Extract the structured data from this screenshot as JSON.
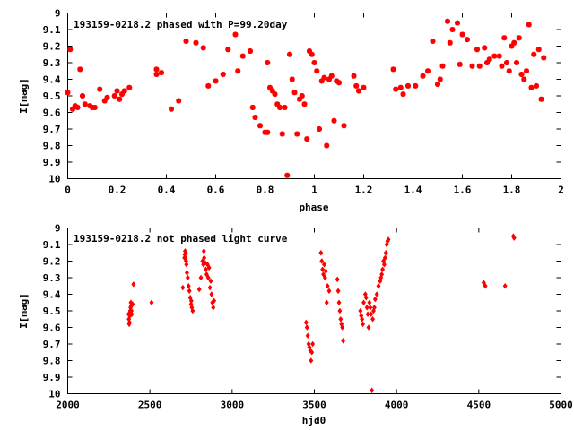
{
  "colors": {
    "points": "#ff0000",
    "axes": "#000000",
    "background": "#ffffff"
  },
  "chart_data": [
    {
      "type": "scatter",
      "title": "193159-0218.2 phased with P=99.20day",
      "xlabel": "phase",
      "ylabel": "I[mag]",
      "xlim": [
        0,
        2
      ],
      "ylim": [
        10,
        9
      ],
      "y_inverted": true,
      "grid": false,
      "marker": "star",
      "xticks": [
        "0",
        "0.2",
        "0.4",
        "0.6",
        "0.8",
        "1",
        "1.2",
        "1.4",
        "1.6",
        "1.8",
        "2"
      ],
      "yticks": [
        "9",
        "9.1",
        "9.2",
        "9.3",
        "9.4",
        "9.5",
        "9.6",
        "9.7",
        "9.8",
        "9.9",
        "10"
      ],
      "x": [
        0.0,
        0.01,
        0.02,
        0.03,
        0.04,
        0.05,
        0.06,
        0.07,
        0.09,
        0.1,
        0.11,
        0.13,
        0.15,
        0.16,
        0.19,
        0.2,
        0.21,
        0.22,
        0.23,
        0.25,
        0.36,
        0.36,
        0.38,
        0.42,
        0.45,
        0.48,
        0.52,
        0.55,
        0.57,
        0.6,
        0.63,
        0.65,
        0.68,
        0.69,
        0.71,
        0.74,
        0.75,
        0.76,
        0.78,
        0.8,
        0.81,
        0.81,
        0.82,
        0.83,
        0.84,
        0.85,
        0.86,
        0.87,
        0.88,
        0.89,
        0.9,
        0.91,
        0.92,
        0.93,
        0.94,
        0.95,
        0.96,
        0.97,
        0.98,
        0.99,
        1.0,
        1.01,
        1.02,
        1.03,
        1.04,
        1.05,
        1.06,
        1.07,
        1.08,
        1.09,
        1.1,
        1.12,
        1.16,
        1.17,
        1.18,
        1.2,
        1.32,
        1.33,
        1.35,
        1.36,
        1.38,
        1.41,
        1.44,
        1.46,
        1.48,
        1.5,
        1.51,
        1.52,
        1.54,
        1.55,
        1.56,
        1.58,
        1.59,
        1.6,
        1.62,
        1.64,
        1.66,
        1.67,
        1.69,
        1.7,
        1.71,
        1.73,
        1.75,
        1.76,
        1.77,
        1.78,
        1.79,
        1.8,
        1.81,
        1.82,
        1.83,
        1.84,
        1.85,
        1.86,
        1.87,
        1.88,
        1.89,
        1.9,
        1.91,
        1.92,
        1.93
      ],
      "y": [
        9.48,
        9.22,
        9.58,
        9.56,
        9.57,
        9.34,
        9.5,
        9.55,
        9.56,
        9.57,
        9.57,
        9.46,
        9.53,
        9.51,
        9.5,
        9.47,
        9.52,
        9.49,
        9.47,
        9.45,
        9.34,
        9.37,
        9.36,
        9.58,
        9.53,
        9.17,
        9.18,
        9.21,
        9.44,
        9.41,
        9.37,
        9.22,
        9.13,
        9.35,
        9.26,
        9.23,
        9.57,
        9.63,
        9.68,
        9.72,
        9.72,
        9.3,
        9.45,
        9.47,
        9.49,
        9.55,
        9.57,
        9.73,
        9.57,
        9.98,
        9.25,
        9.4,
        9.48,
        9.73,
        9.52,
        9.5,
        9.55,
        9.76,
        9.23,
        9.25,
        9.3,
        9.35,
        9.7,
        9.41,
        9.39,
        9.8,
        9.4,
        9.38,
        9.65,
        9.41,
        9.42,
        9.68,
        9.38,
        9.44,
        9.47,
        9.45,
        9.34,
        9.46,
        9.45,
        9.49,
        9.44,
        9.44,
        9.38,
        9.35,
        9.17,
        9.43,
        9.4,
        9.32,
        9.05,
        9.18,
        9.1,
        9.06,
        9.31,
        9.13,
        9.16,
        9.32,
        9.22,
        9.32,
        9.21,
        9.3,
        9.28,
        9.26,
        9.26,
        9.32,
        9.15,
        9.3,
        9.35,
        9.2,
        9.18,
        9.3,
        9.15,
        9.37,
        9.4,
        9.35,
        9.07,
        9.45,
        9.25,
        9.44,
        9.22,
        9.52,
        9.27
      ]
    },
    {
      "type": "scatter",
      "title": "193159-0218.2 not phased light curve",
      "xlabel": "hjd0",
      "ylabel": "I[mag]",
      "xlim": [
        2000,
        5000
      ],
      "ylim": [
        10,
        9
      ],
      "y_inverted": true,
      "grid": false,
      "marker": "diamond",
      "xticks": [
        "2000",
        "2500",
        "3000",
        "3500",
        "4000",
        "4500",
        "5000"
      ],
      "yticks": [
        "9",
        "9.1",
        "9.2",
        "9.3",
        "9.4",
        "9.5",
        "9.6",
        "9.7",
        "9.8",
        "9.9",
        "10"
      ],
      "x": [
        2370,
        2372,
        2374,
        2376,
        2378,
        2380,
        2382,
        2384,
        2386,
        2388,
        2390,
        2395,
        2400,
        2510,
        2700,
        2710,
        2712,
        2714,
        2716,
        2718,
        2720,
        2722,
        2725,
        2730,
        2735,
        2740,
        2745,
        2750,
        2752,
        2755,
        2760,
        2800,
        2810,
        2820,
        2825,
        2828,
        2830,
        2835,
        2840,
        2845,
        2850,
        2855,
        2860,
        2865,
        2870,
        2875,
        2880,
        2885,
        2890,
        3450,
        3455,
        3460,
        3465,
        3470,
        3475,
        3480,
        3485,
        3490,
        3540,
        3545,
        3550,
        3555,
        3560,
        3565,
        3570,
        3575,
        3580,
        3590,
        3640,
        3645,
        3650,
        3655,
        3660,
        3665,
        3670,
        3675,
        3780,
        3785,
        3790,
        3795,
        3800,
        3810,
        3815,
        3820,
        3825,
        3830,
        3835,
        3840,
        3845,
        3850,
        3855,
        3860,
        3865,
        3870,
        3880,
        3890,
        3900,
        3905,
        3910,
        3915,
        3920,
        3925,
        3930,
        3935,
        3940,
        3945,
        3950,
        4530,
        4540,
        4660,
        4710,
        4715
      ],
      "y": [
        9.52,
        9.55,
        9.58,
        9.57,
        9.53,
        9.5,
        9.48,
        9.45,
        9.47,
        9.5,
        9.52,
        9.46,
        9.34,
        9.45,
        9.36,
        9.18,
        9.16,
        9.14,
        9.18,
        9.15,
        9.2,
        9.22,
        9.27,
        9.3,
        9.35,
        9.38,
        9.42,
        9.46,
        9.44,
        9.48,
        9.5,
        9.37,
        9.3,
        9.2,
        9.22,
        9.14,
        9.18,
        9.21,
        9.25,
        9.28,
        9.22,
        9.3,
        9.24,
        9.36,
        9.32,
        9.4,
        9.45,
        9.48,
        9.44,
        9.57,
        9.6,
        9.65,
        9.7,
        9.72,
        9.74,
        9.8,
        9.75,
        9.7,
        9.15,
        9.2,
        9.25,
        9.28,
        9.22,
        9.3,
        9.26,
        9.45,
        9.35,
        9.38,
        9.31,
        9.38,
        9.45,
        9.5,
        9.55,
        9.58,
        9.6,
        9.68,
        9.5,
        9.53,
        9.55,
        9.58,
        9.45,
        9.4,
        9.42,
        9.48,
        9.52,
        9.6,
        9.45,
        9.48,
        9.52,
        9.98,
        9.55,
        9.5,
        9.48,
        9.43,
        9.4,
        9.35,
        9.32,
        9.3,
        9.28,
        9.25,
        9.2,
        9.22,
        9.18,
        9.15,
        9.1,
        9.08,
        9.07,
        9.33,
        9.35,
        9.35,
        9.05,
        9.06
      ]
    }
  ]
}
